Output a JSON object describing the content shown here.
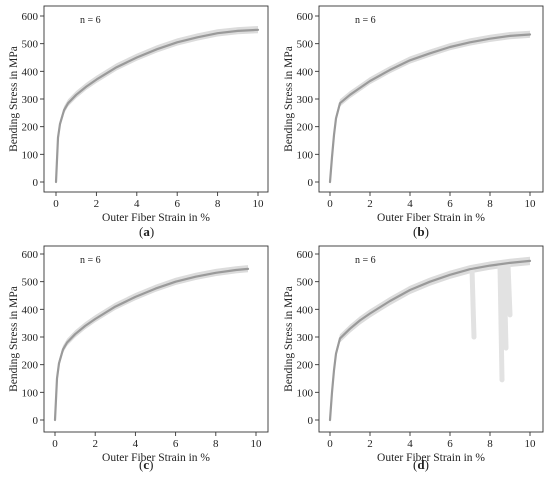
{
  "chart_data": [
    {
      "panel": "a",
      "type": "line",
      "annotation": "n = 6",
      "xlabel": "Outer Fiber Strain in %",
      "ylabel": "Bending Stress in MPa",
      "xlim": [
        -0.5,
        10.5
      ],
      "ylim": [
        -20,
        620
      ],
      "xticks": [
        0,
        2,
        4,
        6,
        8,
        10
      ],
      "yticks": [
        0,
        100,
        200,
        300,
        400,
        500,
        600
      ],
      "grid": false,
      "mean_curve": {
        "x": [
          0,
          0.1,
          0.2,
          0.4,
          0.6,
          1,
          1.5,
          2,
          3,
          4,
          5,
          6,
          7,
          8,
          9,
          10
        ],
        "y": [
          0,
          160,
          210,
          260,
          285,
          315,
          345,
          370,
          415,
          450,
          480,
          505,
          523,
          538,
          546,
          550
        ]
      },
      "band": {
        "lower": -12,
        "upper": 14
      }
    },
    {
      "panel": "b",
      "type": "line",
      "annotation": "n = 6",
      "xlabel": "Outer Fiber Strain in %",
      "ylabel": "Bending Stress in MPa",
      "xlim": [
        -0.5,
        10.5
      ],
      "ylim": [
        -20,
        620
      ],
      "xticks": [
        0,
        2,
        4,
        6,
        8,
        10
      ],
      "yticks": [
        0,
        100,
        200,
        300,
        400,
        500,
        600
      ],
      "grid": false,
      "mean_curve": {
        "x": [
          0,
          0.1,
          0.2,
          0.3,
          0.5,
          1,
          1.5,
          2,
          3,
          4,
          5,
          6,
          7,
          8,
          9,
          10
        ],
        "y": [
          0,
          90,
          170,
          230,
          285,
          315,
          340,
          365,
          405,
          440,
          465,
          488,
          505,
          518,
          528,
          533
        ]
      },
      "band": {
        "lower": -12,
        "upper": 14
      }
    },
    {
      "panel": "c",
      "type": "line",
      "annotation": "n = 6",
      "xlabel": "Outer Fiber Strain in %",
      "ylabel": "Bending Stress in MPa",
      "xlim": [
        -0.5,
        10.5
      ],
      "ylim": [
        -20,
        620
      ],
      "xticks": [
        0,
        2,
        4,
        6,
        8,
        10
      ],
      "yticks": [
        0,
        100,
        200,
        300,
        400,
        500,
        600
      ],
      "grid": false,
      "mean_curve": {
        "x": [
          0,
          0.1,
          0.2,
          0.4,
          0.6,
          1,
          1.5,
          2,
          3,
          4,
          5,
          6,
          7,
          8,
          9,
          9.6
        ],
        "y": [
          0,
          150,
          205,
          255,
          280,
          310,
          340,
          365,
          410,
          445,
          475,
          500,
          518,
          532,
          542,
          546
        ]
      },
      "band": {
        "lower": -12,
        "upper": 14
      }
    },
    {
      "panel": "d",
      "type": "line",
      "annotation": "n = 6",
      "xlabel": "Outer Fiber Strain in %",
      "ylabel": "Bending Stress in MPa",
      "xlim": [
        -0.5,
        10.5
      ],
      "ylim": [
        -20,
        620
      ],
      "xticks": [
        0,
        2,
        4,
        6,
        8,
        10
      ],
      "yticks": [
        0,
        100,
        200,
        300,
        400,
        500,
        600
      ],
      "grid": false,
      "mean_curve": {
        "x": [
          0,
          0.1,
          0.2,
          0.3,
          0.5,
          1,
          1.5,
          2,
          3,
          4,
          5,
          6,
          7,
          8,
          9,
          10
        ],
        "y": [
          0,
          100,
          180,
          240,
          295,
          330,
          360,
          385,
          430,
          470,
          500,
          525,
          545,
          558,
          568,
          575
        ]
      },
      "band": {
        "lower": -15,
        "upper": 15
      },
      "failure_drops": [
        {
          "x": 7.1,
          "y_from": 545,
          "y_to": 300
        },
        {
          "x": 8.5,
          "y_from": 558,
          "y_to": 145
        },
        {
          "x": 8.7,
          "y_from": 560,
          "y_to": 260
        },
        {
          "x": 8.9,
          "y_from": 562,
          "y_to": 380
        }
      ]
    }
  ],
  "panel_labels": [
    {
      "open": "(",
      "letter": "a",
      "close": ")"
    },
    {
      "open": "(",
      "letter": "b",
      "close": ")"
    },
    {
      "open": "(",
      "letter": "c",
      "close": ")"
    },
    {
      "open": "(",
      "letter": "d",
      "close": ")"
    }
  ],
  "colors": {
    "mean_line": "#9a9a9a",
    "band": "#dcdcdc",
    "drop": "#e2e2e2",
    "axis": "#333333"
  }
}
